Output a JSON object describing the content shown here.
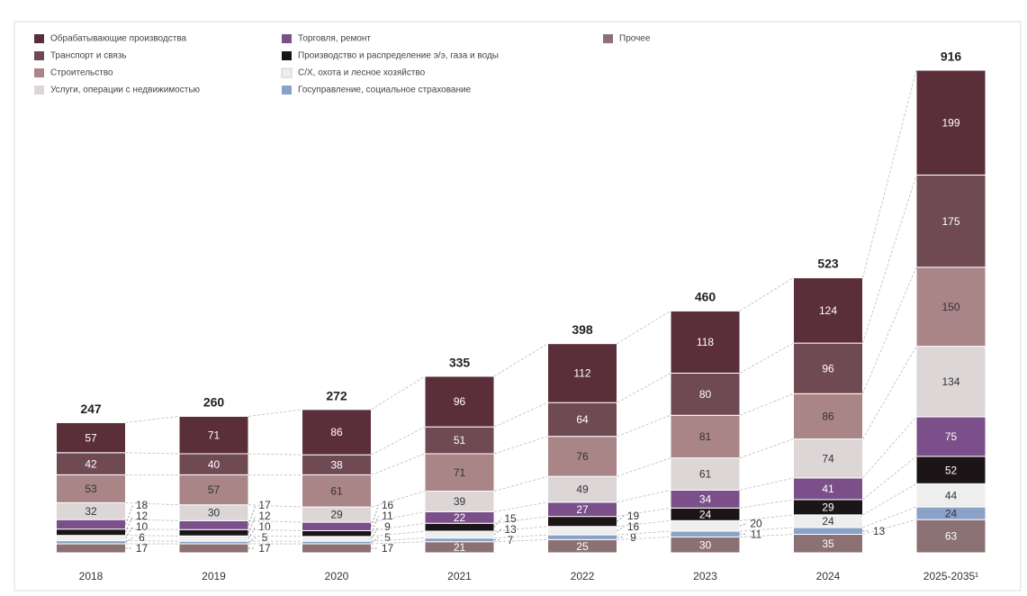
{
  "chart_data": {
    "type": "stacked_bar",
    "categories": [
      "2018",
      "2019",
      "2020",
      "2021",
      "2022",
      "2023",
      "2024",
      "2025-2035¹"
    ],
    "totals": [
      247,
      260,
      272,
      335,
      398,
      460,
      523,
      916
    ],
    "series": [
      {
        "name": "Обрабатывающие производства",
        "color": "#5b2f3a",
        "values": [
          57,
          71,
          86,
          96,
          112,
          118,
          124,
          199
        ]
      },
      {
        "name": "Транспорт и связь",
        "color": "#6f4a52",
        "values": [
          42,
          40,
          38,
          51,
          64,
          80,
          96,
          175
        ]
      },
      {
        "name": "Строительство",
        "color": "#a98587",
        "values": [
          53,
          57,
          61,
          71,
          76,
          81,
          86,
          150
        ]
      },
      {
        "name": "Услуги, операции с недвижимостью",
        "color": "#dcd6d7",
        "values": [
          32,
          30,
          29,
          39,
          49,
          61,
          74,
          134
        ]
      },
      {
        "name": "Торговля, ремонт",
        "color": "#7a4f8a",
        "values": [
          18,
          17,
          16,
          22,
          27,
          34,
          41,
          75
        ]
      },
      {
        "name": "Производство и распределение э/э, газа и воды",
        "color": "#1c1517",
        "values": [
          12,
          12,
          11,
          15,
          19,
          24,
          29,
          52
        ]
      },
      {
        "name": "С/Х, охота и лесное хозяйство",
        "color": "#eeeeee",
        "values": [
          10,
          10,
          9,
          13,
          16,
          20,
          24,
          44
        ]
      },
      {
        "name": "Госуправление, социальное страхование",
        "color": "#8aa2c8",
        "values": [
          6,
          5,
          5,
          7,
          9,
          11,
          13,
          24
        ]
      },
      {
        "name": "Прочее",
        "color": "#8b7173",
        "values": [
          17,
          17,
          17,
          21,
          25,
          30,
          35,
          63
        ]
      }
    ]
  }
}
